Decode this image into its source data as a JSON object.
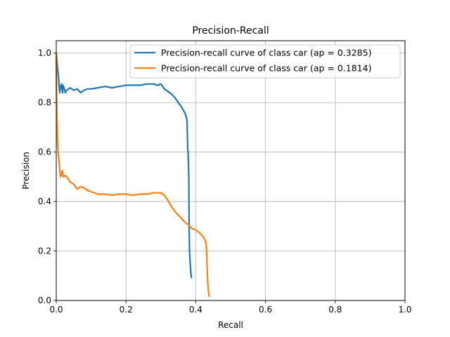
{
  "chart_data": {
    "type": "line",
    "title": "Precision-Recall",
    "xlabel": "Recall",
    "ylabel": "Precision",
    "xlim": [
      0,
      1
    ],
    "ylim": [
      0,
      1.05
    ],
    "xticks": [
      "0.0",
      "0.2",
      "0.4",
      "0.6",
      "0.8",
      "1.0"
    ],
    "yticks": [
      "0.0",
      "0.2",
      "0.4",
      "0.6",
      "0.8",
      "1.0"
    ],
    "grid": true,
    "legend_position": "top-right",
    "series": [
      {
        "name": "Precision-recall curve of class car (ap = 0.3285)",
        "color": "#1f77b4",
        "x": [
          0.0,
          0.003,
          0.006,
          0.008,
          0.01,
          0.012,
          0.015,
          0.018,
          0.02,
          0.023,
          0.026,
          0.03,
          0.035,
          0.04,
          0.05,
          0.06,
          0.07,
          0.08,
          0.09,
          0.1,
          0.12,
          0.14,
          0.16,
          0.18,
          0.2,
          0.22,
          0.24,
          0.26,
          0.28,
          0.29,
          0.3,
          0.31,
          0.32,
          0.33,
          0.34,
          0.35,
          0.36,
          0.37,
          0.375,
          0.377,
          0.378,
          0.38,
          0.381,
          0.382,
          0.384,
          0.386,
          0.388
        ],
        "y": [
          1.0,
          0.95,
          0.91,
          0.87,
          0.84,
          0.86,
          0.875,
          0.84,
          0.87,
          0.855,
          0.84,
          0.85,
          0.855,
          0.86,
          0.85,
          0.855,
          0.84,
          0.85,
          0.855,
          0.855,
          0.86,
          0.865,
          0.86,
          0.865,
          0.87,
          0.87,
          0.87,
          0.875,
          0.875,
          0.87,
          0.875,
          0.855,
          0.845,
          0.835,
          0.82,
          0.8,
          0.78,
          0.755,
          0.73,
          0.61,
          0.6,
          0.5,
          0.3,
          0.2,
          0.15,
          0.11,
          0.09
        ]
      },
      {
        "name": "Precision-recall curve of class car (ap = 0.1814)",
        "color": "#ff7f0e",
        "x": [
          0.0,
          0.001,
          0.002,
          0.003,
          0.004,
          0.006,
          0.008,
          0.01,
          0.012,
          0.015,
          0.018,
          0.02,
          0.025,
          0.03,
          0.04,
          0.05,
          0.06,
          0.07,
          0.08,
          0.09,
          0.1,
          0.12,
          0.14,
          0.16,
          0.18,
          0.2,
          0.22,
          0.24,
          0.26,
          0.28,
          0.3,
          0.31,
          0.32,
          0.33,
          0.34,
          0.35,
          0.36,
          0.37,
          0.38,
          0.39,
          0.4,
          0.41,
          0.42,
          0.425,
          0.43,
          0.431,
          0.432,
          0.434,
          0.436,
          0.438,
          0.44
        ],
        "y": [
          1.0,
          0.83,
          0.75,
          0.68,
          0.63,
          0.59,
          0.56,
          0.53,
          0.5,
          0.51,
          0.525,
          0.5,
          0.505,
          0.5,
          0.48,
          0.47,
          0.45,
          0.46,
          0.455,
          0.445,
          0.44,
          0.43,
          0.43,
          0.425,
          0.43,
          0.43,
          0.425,
          0.43,
          0.43,
          0.435,
          0.435,
          0.425,
          0.405,
          0.38,
          0.36,
          0.345,
          0.33,
          0.315,
          0.305,
          0.29,
          0.285,
          0.275,
          0.26,
          0.25,
          0.23,
          0.2,
          0.15,
          0.08,
          0.04,
          0.02,
          0.015
        ]
      }
    ]
  }
}
